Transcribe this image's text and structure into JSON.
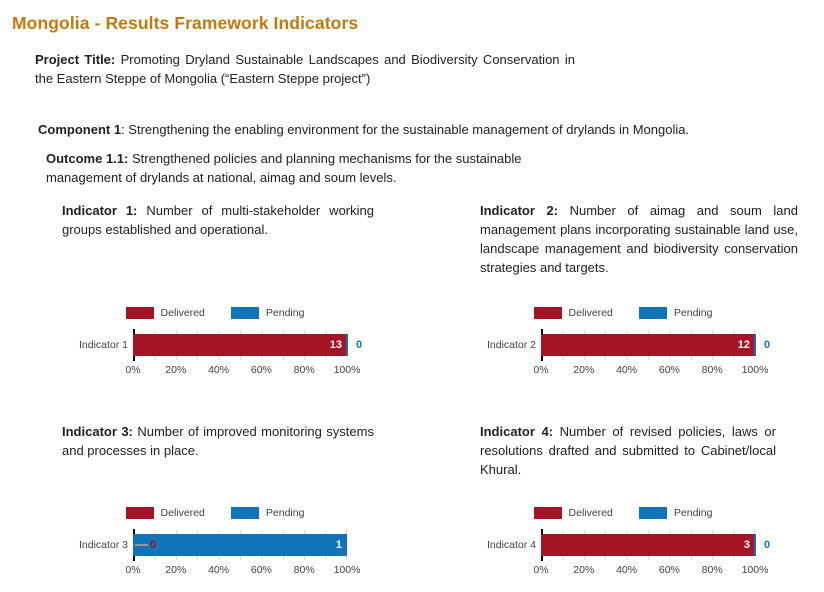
{
  "page_title": "Mongolia - Results Framework Indicators",
  "project": {
    "label": "Project Title:",
    "text": "Promoting Dryland Sustainable Landscapes and Biodiversity Conservation in the Eastern Steppe of Mongolia (“Eastern Steppe project”)"
  },
  "component": {
    "label": "Component 1",
    "text": ": Strengthening the enabling environment for the sustainable management of drylands in Mongolia."
  },
  "outcome": {
    "label": "Outcome 1.1:",
    "text": "Strengthened policies and planning mechanisms for the sustainable management of drylands at national, aimag and soum levels."
  },
  "charts_common": {
    "legend": {
      "delivered": "Delivered",
      "pending": "Pending"
    },
    "x_ticks": [
      "0%",
      "20%",
      "40%",
      "60%",
      "80%",
      "100%"
    ]
  },
  "indicators": [
    {
      "label": "Indicator 1:",
      "description": "Number of multi-stakeholder working groups established and operational.",
      "chart": {
        "category": "Indicator 1",
        "delivered_label": "13",
        "pending_label": "0"
      }
    },
    {
      "label": "Indicator 2:",
      "description": "Number of aimag and soum land management plans incorporating sustainable land use, landscape management and biodiversity conservation strategies and targets.",
      "chart": {
        "category": "Indicator 2",
        "delivered_label": "12",
        "pending_label": "0"
      }
    },
    {
      "label": "Indicator 3:",
      "description": "Number of improved monitoring systems and processes in place.",
      "chart": {
        "category": "Indicator 3",
        "delivered_label": "0",
        "pending_label": "1"
      }
    },
    {
      "label": "Indicator 4:",
      "description": "Number of revised policies, laws or resolutions drafted and submitted to Cabinet/local Khural.",
      "chart": {
        "category": "Indicator 4",
        "delivered_label": "3",
        "pending_label": "0"
      }
    }
  ],
  "colors": {
    "title": "#C4790D",
    "delivered": "#A51425",
    "pending": "#1274B8",
    "axis": "#3F3F3F",
    "grid": "#D9D9D9",
    "leader": "#999999",
    "body": "#212121"
  },
  "chart_data": [
    {
      "type": "bar",
      "orientation": "horizontal",
      "stacked": true,
      "categories": [
        "Indicator 1"
      ],
      "series": [
        {
          "name": "Delivered",
          "values": [
            13
          ],
          "pct": [
            100
          ]
        },
        {
          "name": "Pending",
          "values": [
            0
          ],
          "pct": [
            0
          ]
        }
      ],
      "x_ticks": [
        "0%",
        "20%",
        "40%",
        "60%",
        "80%",
        "100%"
      ],
      "xlim_pct": [
        0,
        100
      ],
      "grid": true,
      "legend_position": "top"
    },
    {
      "type": "bar",
      "orientation": "horizontal",
      "stacked": true,
      "categories": [
        "Indicator 2"
      ],
      "series": [
        {
          "name": "Delivered",
          "values": [
            12
          ],
          "pct": [
            100
          ]
        },
        {
          "name": "Pending",
          "values": [
            0
          ],
          "pct": [
            0
          ]
        }
      ],
      "x_ticks": [
        "0%",
        "20%",
        "40%",
        "60%",
        "80%",
        "100%"
      ],
      "xlim_pct": [
        0,
        100
      ],
      "grid": true,
      "legend_position": "top"
    },
    {
      "type": "bar",
      "orientation": "horizontal",
      "stacked": true,
      "categories": [
        "Indicator 3"
      ],
      "series": [
        {
          "name": "Delivered",
          "values": [
            0
          ],
          "pct": [
            0
          ]
        },
        {
          "name": "Pending",
          "values": [
            1
          ],
          "pct": [
            100
          ]
        }
      ],
      "x_ticks": [
        "0%",
        "20%",
        "40%",
        "60%",
        "80%",
        "100%"
      ],
      "xlim_pct": [
        0,
        100
      ],
      "grid": true,
      "legend_position": "top"
    },
    {
      "type": "bar",
      "orientation": "horizontal",
      "stacked": true,
      "categories": [
        "Indicator 4"
      ],
      "series": [
        {
          "name": "Delivered",
          "values": [
            3
          ],
          "pct": [
            100
          ]
        },
        {
          "name": "Pending",
          "values": [
            0
          ],
          "pct": [
            0
          ]
        }
      ],
      "x_ticks": [
        "0%",
        "20%",
        "40%",
        "60%",
        "80%",
        "100%"
      ],
      "xlim_pct": [
        0,
        100
      ],
      "grid": true,
      "legend_position": "top"
    }
  ]
}
